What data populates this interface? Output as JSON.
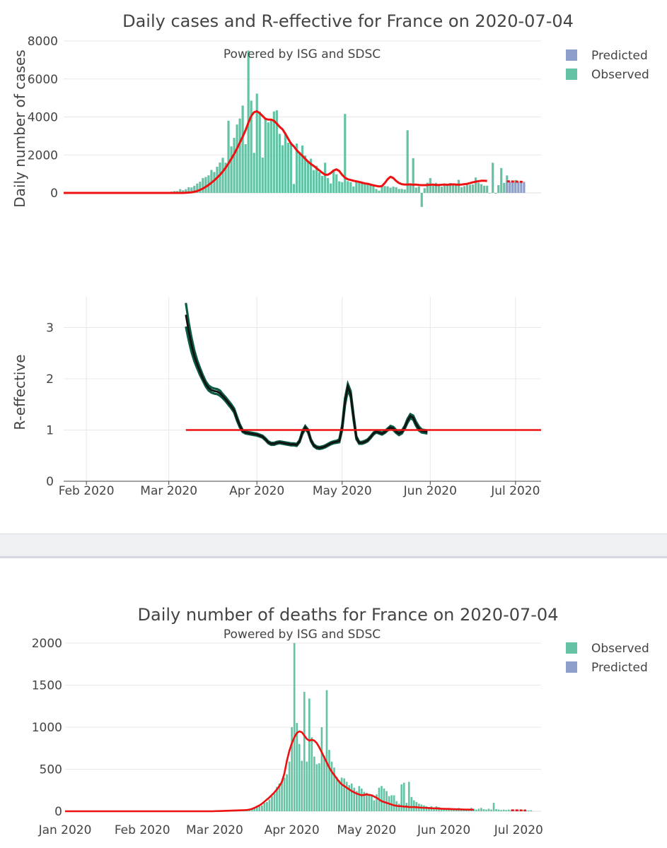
{
  "top": {
    "title": "Daily cases and R-effective for France on 2020-07-04",
    "subtitle": "Powered by ISG and SDSC",
    "legend": {
      "predicted": "Predicted",
      "observed": "Observed"
    }
  },
  "bottom": {
    "title": "Daily number of deaths for France on 2020-07-04",
    "subtitle": "Powered by ISG and SDSC",
    "legend": {
      "observed": "Observed",
      "predicted": "Predicted"
    }
  },
  "colors": {
    "observed": "#66c2a5",
    "predicted": "#8da0cb",
    "trend": "#ee1111",
    "r_line": "#0b5a45",
    "r_center": "#111111",
    "grid": "#e8e8e8"
  },
  "chart_data": [
    {
      "type": "bar",
      "id": "cases",
      "ylabel": "Daily number of cases",
      "ylim": [
        -800,
        8000
      ],
      "yticks": [
        0,
        2000,
        4000,
        6000,
        8000
      ],
      "xlim": [
        "2020-01-24",
        "2020-07-10"
      ],
      "observed": {
        "start": "2020-02-25",
        "values": [
          2,
          6,
          20,
          19,
          25,
          20,
          70,
          100,
          100,
          200,
          140,
          200,
          300,
          286,
          372,
          495,
          590,
          785,
          840,
          924,
          1210,
          1100,
          1380,
          1600,
          1850,
          1590,
          3800,
          2450,
          2900,
          3600,
          3920,
          4600,
          2570,
          7500,
          4860,
          2110,
          5230,
          4280,
          1860,
          3910,
          3710,
          3800,
          4290,
          4350,
          3110,
          2510,
          3150,
          2640,
          2660,
          470,
          2600,
          2100,
          2500,
          1970,
          1650,
          1800,
          1200,
          1430,
          1090,
          900,
          1590,
          790,
          500,
          1230,
          980,
          610,
          570,
          4160,
          620,
          570,
          340,
          560,
          530,
          510,
          520,
          460,
          420,
          450,
          210,
          120,
          380,
          360,
          350,
          280,
          330,
          300,
          210,
          210,
          180,
          3300,
          440,
          1830,
          280,
          340,
          -740,
          250,
          540,
          780,
          420,
          530,
          430,
          330,
          430,
          410,
          520,
          450,
          480,
          690,
          300,
          360,
          430,
          430,
          450,
          810,
          540,
          460,
          380,
          380,
          -20,
          1590,
          -40,
          410,
          1310,
          530,
          920,
          520,
          580,
          680
        ]
      },
      "predicted": {
        "start": "2020-06-28",
        "values": [
          610,
          600,
          590,
          590,
          580,
          580,
          580
        ]
      },
      "trend": {
        "start": "2020-01-24",
        "values": [
          0,
          0,
          0,
          0,
          0,
          0,
          0,
          0,
          0,
          0,
          0,
          0,
          0,
          0,
          0,
          0,
          0,
          0,
          0,
          0,
          0,
          0,
          0,
          0,
          0,
          0,
          0,
          0,
          0,
          0,
          0,
          0,
          0,
          0,
          0,
          0,
          0,
          0,
          0,
          0,
          0,
          0,
          0,
          10,
          20,
          30,
          60,
          100,
          160,
          230,
          320,
          420,
          540,
          660,
          800,
          950,
          1130,
          1330,
          1550,
          1800,
          2050,
          2340,
          2650,
          2960,
          3300,
          3700,
          4050,
          4250,
          4300,
          4200,
          4050,
          3900,
          3860,
          3860,
          3800,
          3650,
          3480,
          3350,
          3120,
          2850,
          2600,
          2450,
          2250,
          2100,
          1950,
          1800,
          1650,
          1520,
          1420,
          1300,
          1180,
          1060,
          960,
          960,
          1050,
          1180,
          1240,
          1150,
          950,
          800,
          720,
          680,
          640,
          610,
          580,
          540,
          500,
          480,
          440,
          400,
          370,
          340,
          360,
          520,
          720,
          850,
          780,
          630,
          520,
          460,
          440,
          440,
          450,
          430,
          440,
          420,
          410,
          410,
          420,
          430,
          440,
          420,
          420,
          430,
          440,
          430,
          440,
          450,
          440,
          430,
          440,
          460,
          480,
          520,
          560,
          590,
          620,
          640,
          640,
          630
        ]
      }
    },
    {
      "type": "line",
      "id": "reff",
      "ylabel": "R-effective",
      "ylim": [
        0,
        3.6
      ],
      "yticks": [
        0,
        1,
        2,
        3
      ],
      "xlim": [
        "2020-01-24",
        "2020-07-10"
      ],
      "xticks": [
        "Feb 2020",
        "Mar 2020",
        "Apr 2020",
        "May 2020",
        "Jun 2020",
        "Jul 2020"
      ],
      "start": "2020-03-07",
      "median": [
        3.25,
        2.93,
        2.66,
        2.44,
        2.28,
        2.14,
        2.01,
        1.9,
        1.82,
        1.78,
        1.76,
        1.75,
        1.72,
        1.66,
        1.6,
        1.53,
        1.46,
        1.38,
        1.22,
        1.08,
        0.98,
        0.95,
        0.94,
        0.93,
        0.92,
        0.91,
        0.89,
        0.87,
        0.82,
        0.76,
        0.73,
        0.73,
        0.75,
        0.76,
        0.75,
        0.74,
        0.73,
        0.72,
        0.72,
        0.71,
        0.78,
        0.95,
        1.05,
        0.98,
        0.8,
        0.7,
        0.66,
        0.65,
        0.66,
        0.68,
        0.71,
        0.74,
        0.76,
        0.77,
        0.79,
        1.05,
        1.55,
        1.85,
        1.7,
        1.25,
        0.85,
        0.75,
        0.75,
        0.77,
        0.8,
        0.86,
        0.93,
        0.97,
        0.95,
        0.93,
        0.96,
        1.01,
        1.05,
        1.03,
        0.97,
        0.93,
        0.96,
        1.05,
        1.18,
        1.27,
        1.24,
        1.12,
        1.03,
        0.98,
        0.97,
        0.96
      ],
      "lower": [
        3.02,
        2.75,
        2.52,
        2.34,
        2.2,
        2.07,
        1.96,
        1.85,
        1.77,
        1.73,
        1.71,
        1.7,
        1.67,
        1.62,
        1.56,
        1.49,
        1.42,
        1.34,
        1.18,
        1.05,
        0.96,
        0.93,
        0.92,
        0.91,
        0.9,
        0.89,
        0.87,
        0.85,
        0.8,
        0.74,
        0.71,
        0.71,
        0.73,
        0.74,
        0.73,
        0.72,
        0.71,
        0.7,
        0.7,
        0.69,
        0.76,
        0.92,
        1.02,
        0.95,
        0.78,
        0.68,
        0.64,
        0.63,
        0.64,
        0.66,
        0.69,
        0.72,
        0.74,
        0.75,
        0.76,
        1.0,
        1.48,
        1.78,
        1.64,
        1.2,
        0.82,
        0.73,
        0.73,
        0.75,
        0.78,
        0.84,
        0.91,
        0.95,
        0.93,
        0.91,
        0.94,
        0.99,
        1.02,
        1.0,
        0.94,
        0.9,
        0.93,
        1.02,
        1.14,
        1.23,
        1.2,
        1.08,
        0.99,
        0.95,
        0.94,
        0.93
      ],
      "upper": [
        3.48,
        3.1,
        2.8,
        2.55,
        2.36,
        2.21,
        2.07,
        1.95,
        1.87,
        1.83,
        1.81,
        1.8,
        1.77,
        1.7,
        1.64,
        1.57,
        1.5,
        1.42,
        1.26,
        1.11,
        1.0,
        0.97,
        0.96,
        0.95,
        0.94,
        0.93,
        0.91,
        0.89,
        0.84,
        0.78,
        0.75,
        0.75,
        0.77,
        0.78,
        0.77,
        0.76,
        0.75,
        0.74,
        0.74,
        0.73,
        0.8,
        0.98,
        1.08,
        1.01,
        0.82,
        0.72,
        0.68,
        0.67,
        0.68,
        0.7,
        0.73,
        0.76,
        0.78,
        0.79,
        0.82,
        1.1,
        1.62,
        1.9,
        1.76,
        1.3,
        0.88,
        0.77,
        0.77,
        0.79,
        0.82,
        0.88,
        0.95,
        0.99,
        0.97,
        0.95,
        0.98,
        1.03,
        1.08,
        1.06,
        1.0,
        0.96,
        0.99,
        1.08,
        1.22,
        1.31,
        1.28,
        1.16,
        1.07,
        1.01,
        1.0,
        0.99
      ],
      "reference": {
        "value": 1,
        "x0": "2020-03-07",
        "x1": "2020-07-10"
      }
    },
    {
      "type": "bar",
      "id": "deaths",
      "ylim": [
        0,
        2050
      ],
      "yticks": [
        0,
        500,
        1000,
        1500,
        2000
      ],
      "xlim": [
        "2020-01-01",
        "2020-07-10"
      ],
      "xticks": [
        "Jan 2020",
        "Feb 2020",
        "Mar 2020",
        "Apr 2020",
        "May 2020",
        "Jun 2020",
        "Jul 2020"
      ],
      "observed": {
        "start": "2020-03-01",
        "values": [
          1,
          1,
          1,
          2,
          2,
          3,
          3,
          4,
          5,
          6,
          8,
          10,
          15,
          20,
          25,
          32,
          40,
          50,
          60,
          70,
          100,
          110,
          140,
          180,
          230,
          290,
          330,
          360,
          400,
          440,
          590,
          1000,
          2000,
          1050,
          800,
          600,
          1420,
          590,
          1340,
          880,
          650,
          560,
          570,
          1000,
          660,
          1440,
          730,
          590,
          520,
          410,
          370,
          400,
          390,
          350,
          310,
          330,
          280,
          240,
          300,
          270,
          230,
          220,
          200,
          180,
          130,
          200,
          280,
          300,
          270,
          240,
          180,
          190,
          190,
          120,
          90,
          320,
          340,
          100,
          350,
          170,
          130,
          110,
          90,
          80,
          70,
          60,
          50,
          60,
          30,
          60,
          50,
          40,
          30,
          30,
          40,
          25,
          30,
          35,
          40,
          30,
          25,
          30,
          30,
          40,
          30,
          20,
          30,
          40,
          25,
          20,
          30,
          20,
          100,
          25,
          20,
          15,
          20,
          15,
          20,
          10,
          15,
          12,
          10,
          15,
          15,
          10,
          10,
          12
        ]
      },
      "predicted": {
        "start": "2020-06-28",
        "values": [
          12,
          12,
          11,
          11,
          11,
          10,
          10
        ]
      },
      "trend": {
        "start": "2020-01-01",
        "values": [
          0,
          0,
          0,
          0,
          0,
          0,
          0,
          0,
          0,
          0,
          0,
          0,
          0,
          0,
          0,
          0,
          0,
          0,
          0,
          0,
          0,
          0,
          0,
          0,
          0,
          0,
          0,
          0,
          0,
          0,
          0,
          0,
          0,
          0,
          0,
          0,
          0,
          0,
          0,
          0,
          0,
          0,
          0,
          0,
          0,
          0,
          0,
          0,
          0,
          0,
          0,
          0,
          0,
          0,
          0,
          0,
          0,
          0,
          0,
          0,
          1,
          2,
          3,
          4,
          5,
          6,
          7,
          8,
          9,
          10,
          11,
          12,
          13,
          15,
          20,
          28,
          40,
          55,
          70,
          90,
          115,
          140,
          165,
          195,
          225,
          260,
          300,
          350,
          450,
          600,
          720,
          810,
          880,
          930,
          950,
          940,
          900,
          860,
          840,
          850,
          840,
          810,
          760,
          700,
          640,
          580,
          520,
          470,
          430,
          390,
          350,
          320,
          300,
          280,
          260,
          240,
          225,
          210,
          200,
          190,
          195,
          200,
          195,
          190,
          175,
          160,
          140,
          120,
          110,
          100,
          90,
          80,
          70,
          65,
          60,
          60,
          55,
          55,
          50,
          50,
          50,
          48,
          45,
          43,
          42,
          40,
          38,
          36,
          35,
          34,
          32,
          30,
          29,
          28,
          27,
          26,
          25,
          24,
          23,
          22,
          21,
          20,
          20,
          19,
          19
        ]
      }
    }
  ]
}
